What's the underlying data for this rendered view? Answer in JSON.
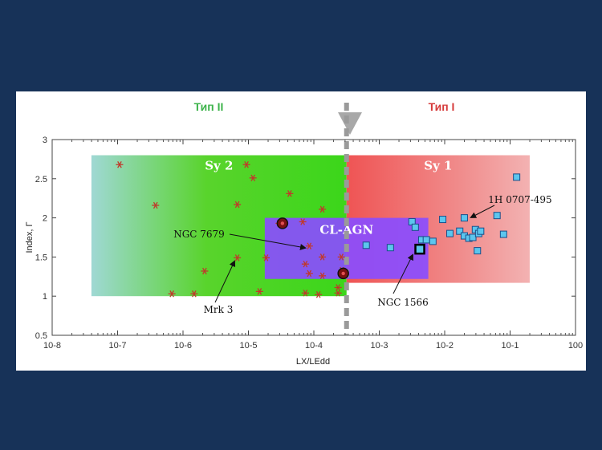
{
  "slide": {
    "type2_label": "Тип II",
    "type1_label": "Тип I"
  },
  "colors": {
    "background": "#173258",
    "type2": "#3cb34a",
    "type1": "#d63a3a",
    "sy2_region": "#3bd61a",
    "sy1_region": "#ef5454",
    "clagn_region": "#8a4dff",
    "sy2_points": "#c0392b",
    "sy1_points": "#5cc6ee",
    "divider": "#9a9a9a"
  },
  "chart_data": {
    "type": "scatter",
    "x_scale": "log",
    "xlim_exp": [
      -8,
      0
    ],
    "ylim": [
      0.5,
      3
    ],
    "x_tick_labels": [
      "10-8",
      "10-7",
      "10-6",
      "10-5",
      "10-4",
      "10-3",
      "10-2",
      "10-1",
      "100"
    ],
    "y_tick_labels": [
      "0.5",
      "1",
      "1.5",
      "2",
      "2.5",
      "3"
    ],
    "ylabel": "Index, Γ",
    "xlabel": "LX/LEdd",
    "divider_log_x": -3.5,
    "regions": [
      {
        "name": "Sy 2",
        "log_x": [
          -7.4,
          -3.5
        ],
        "y": [
          1.0,
          2.8
        ]
      },
      {
        "name": "Sy 1",
        "log_x": [
          -3.5,
          -0.7
        ],
        "y": [
          1.17,
          2.8
        ]
      },
      {
        "name": "CL-AGN",
        "log_x": [
          -4.75,
          -2.25
        ],
        "y": [
          1.22,
          2.0
        ]
      }
    ],
    "series": [
      {
        "name": "Sy 2",
        "points": [
          [
            -6.97,
            2.68
          ],
          [
            -6.42,
            2.16
          ],
          [
            -6.17,
            1.03
          ],
          [
            -5.83,
            1.03
          ],
          [
            -5.67,
            1.32
          ],
          [
            -5.17,
            1.49
          ],
          [
            -5.17,
            2.17
          ],
          [
            -5.03,
            2.68
          ],
          [
            -4.93,
            2.51
          ],
          [
            -4.83,
            1.06
          ],
          [
            -4.73,
            1.49
          ],
          [
            -4.53,
            1.93
          ],
          [
            -4.37,
            2.31
          ],
          [
            -4.17,
            1.95
          ],
          [
            -4.13,
            1.04
          ],
          [
            -4.13,
            1.41
          ],
          [
            -4.07,
            1.64
          ],
          [
            -4.07,
            1.29
          ],
          [
            -3.93,
            1.02
          ],
          [
            -3.87,
            1.26
          ],
          [
            -3.63,
            1.11
          ],
          [
            -3.57,
            1.33
          ],
          [
            -3.87,
            1.5
          ],
          [
            -3.58,
            1.5
          ],
          [
            -3.87,
            2.11
          ],
          [
            -3.63,
            1.04
          ]
        ]
      },
      {
        "name": "Sy 1",
        "points": [
          [
            -3.2,
            1.65
          ],
          [
            -2.83,
            1.62
          ],
          [
            -2.5,
            1.95
          ],
          [
            -2.45,
            1.88
          ],
          [
            -2.35,
            1.72
          ],
          [
            -2.37,
            1.62
          ],
          [
            -2.28,
            1.72
          ],
          [
            -2.18,
            1.7
          ],
          [
            -2.03,
            1.98
          ],
          [
            -1.92,
            1.8
          ],
          [
            -1.77,
            1.83
          ],
          [
            -1.7,
            1.77
          ],
          [
            -1.63,
            1.74
          ],
          [
            -1.57,
            1.75
          ],
          [
            -1.53,
            1.85
          ],
          [
            -1.48,
            1.8
          ],
          [
            -1.5,
            1.58
          ],
          [
            -1.45,
            1.83
          ],
          [
            -1.7,
            2.0
          ],
          [
            -1.2,
            2.03
          ],
          [
            -1.1,
            1.79
          ],
          [
            -0.9,
            2.52
          ]
        ]
      }
    ],
    "highlighted": [
      {
        "name": "NGC 1566",
        "log_x": -2.38,
        "y": 1.6
      },
      {
        "name": "NGC 7679",
        "log_x": -4.48,
        "y": 1.93
      },
      {
        "name": "",
        "log_x": -3.55,
        "y": 1.29
      }
    ],
    "annotations": [
      {
        "text": "NGC 7679"
      },
      {
        "text": "Mrk 3"
      },
      {
        "text": "NGC 1566"
      },
      {
        "text": "1H 0707-495"
      }
    ]
  }
}
